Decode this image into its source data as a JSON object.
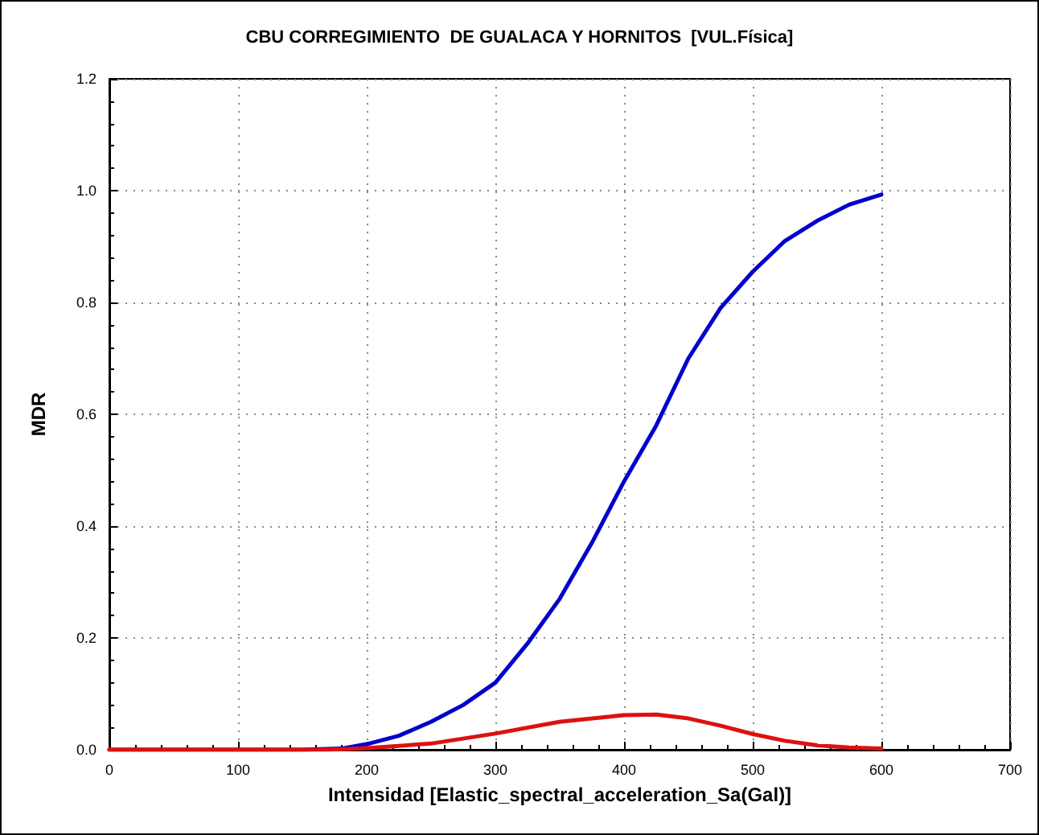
{
  "chart_data": {
    "type": "line",
    "title": "CBU CORREGIMIENTO  DE GUALACA Y HORNITOS  [VUL.Física]",
    "xlabel": "Intensidad [Elastic_spectral_acceleration_Sa(Gal)]",
    "ylabel": "MDR",
    "xlim": [
      0,
      700
    ],
    "xticks": [
      0,
      100,
      200,
      300,
      400,
      500,
      600,
      700
    ],
    "ylim": [
      0,
      1.2
    ],
    "yticks": [
      {
        "value": 0,
        "label": "0.0"
      },
      0.2,
      0.4,
      0.6,
      0.8,
      {
        "value": 1,
        "label": "1.0"
      },
      1.2
    ],
    "grid": true,
    "marker": "none",
    "line_style": "solid",
    "series": [
      {
        "color": "#0000cc",
        "x": [
          0,
          150,
          180,
          200,
          225,
          250,
          275,
          300,
          325,
          350,
          375,
          400,
          425,
          450,
          475,
          500,
          525,
          550,
          575,
          600
        ],
        "values": [
          0,
          0,
          0.002,
          0.01,
          0.025,
          0.05,
          0.08,
          0.12,
          0.19,
          0.27,
          0.37,
          0.48,
          0.58,
          0.7,
          0.79,
          0.855,
          0.91,
          0.946,
          0.975,
          0.993
        ]
      },
      {
        "color": "#dd1111",
        "x": [
          0,
          170,
          200,
          250,
          300,
          350,
          400,
          425,
          450,
          475,
          500,
          525,
          550,
          575,
          600
        ],
        "values": [
          0,
          0,
          0.003,
          0.011,
          0.029,
          0.05,
          0.062,
          0.063,
          0.056,
          0.043,
          0.028,
          0.016,
          0.008,
          0.004,
          0.002
        ]
      }
    ]
  }
}
